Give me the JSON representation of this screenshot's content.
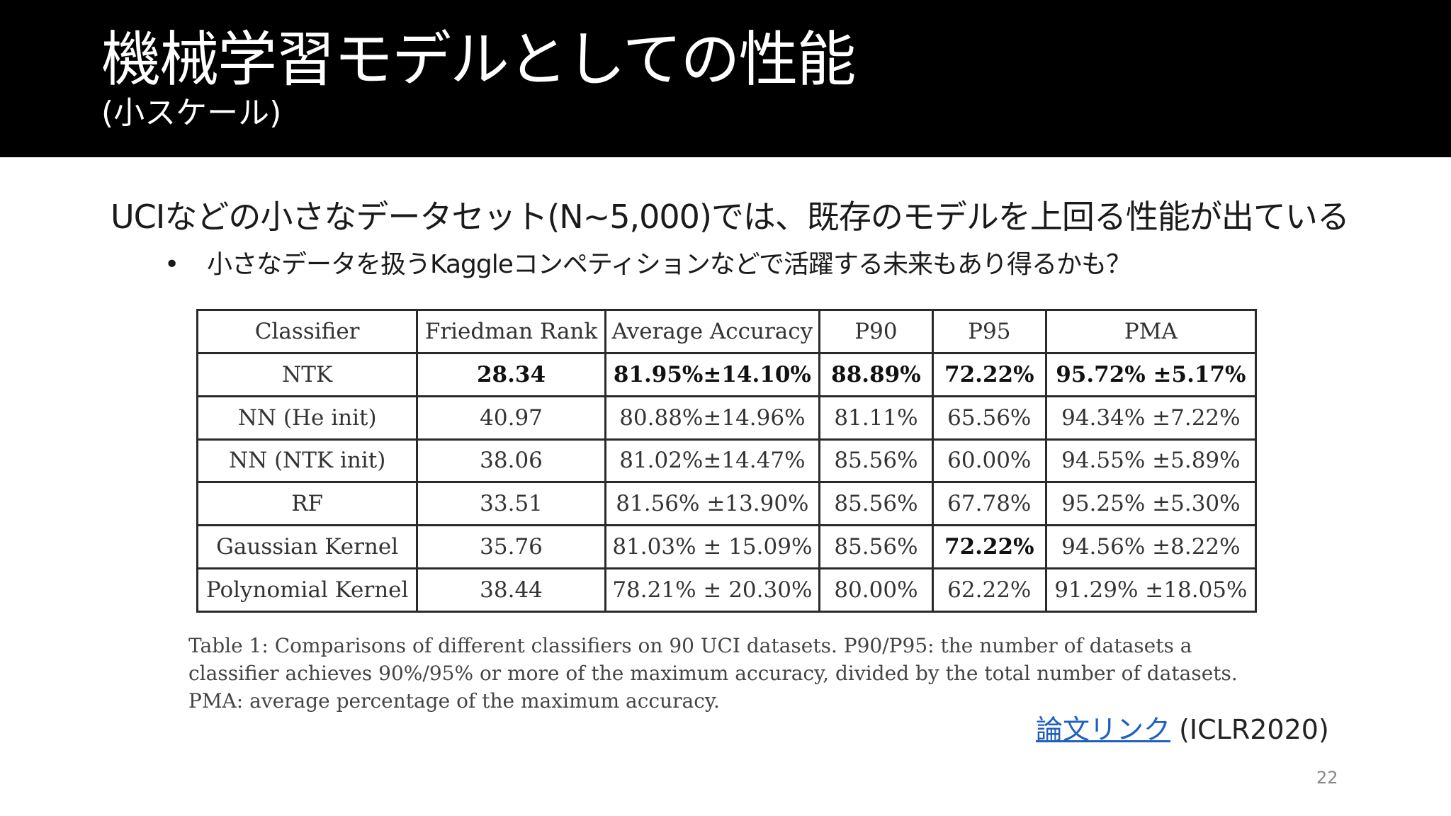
{
  "header": {
    "title": "機械学習モデルとしての性能",
    "subtitle": "(小スケール)"
  },
  "body": {
    "main_text": "UCIなどの小さなデータセット(N~5,000)では、既存のモデルを上回る性能が出ている",
    "bullet_marker": "•",
    "bullet_text": "小さなデータを扱うKaggleコンペティションなどで活躍する未来もあり得るかも？"
  },
  "table": {
    "headers": [
      "Classifier",
      "Friedman Rank",
      "Average Accuracy",
      "P90",
      "P95",
      "PMA"
    ],
    "rows": [
      [
        "NTK",
        "28.34",
        "81.95%±14.10%",
        "88.89%",
        "72.22%",
        "95.72% ±5.17%"
      ],
      [
        "NN (He init)",
        "40.97",
        "80.88%±14.96%",
        "81.11%",
        "65.56%",
        "94.34% ±7.22%"
      ],
      [
        "NN (NTK init)",
        "38.06",
        "81.02%±14.47%",
        "85.56%",
        "60.00%",
        "94.55% ±5.89%"
      ],
      [
        "RF",
        "33.51",
        "81.56% ±13.90%",
        "85.56%",
        "67.78%",
        "95.25% ±5.30%"
      ],
      [
        "Gaussian Kernel",
        "35.76",
        "81.03% ± 15.09%",
        "85.56%",
        "72.22%",
        "94.56% ±8.22%"
      ],
      [
        "Polynomial Kernel",
        "38.44",
        "78.21% ± 20.30%",
        "80.00%",
        "62.22%",
        "91.29% ±18.05%"
      ]
    ],
    "caption": "Table 1: Comparisons of different classifiers on 90 UCI datasets. P90/P95: the number of datasets a classifier achieves 90%/95% or more of the maximum accuracy, divided by the total number of datasets. PMA: average percentage of the maximum accuracy."
  },
  "reference": {
    "link_text": "論文リンク",
    "venue": "(ICLR2020)"
  },
  "page_number": "22",
  "colors": {
    "header_bg": "#000000",
    "link": "#1f5fbf"
  }
}
